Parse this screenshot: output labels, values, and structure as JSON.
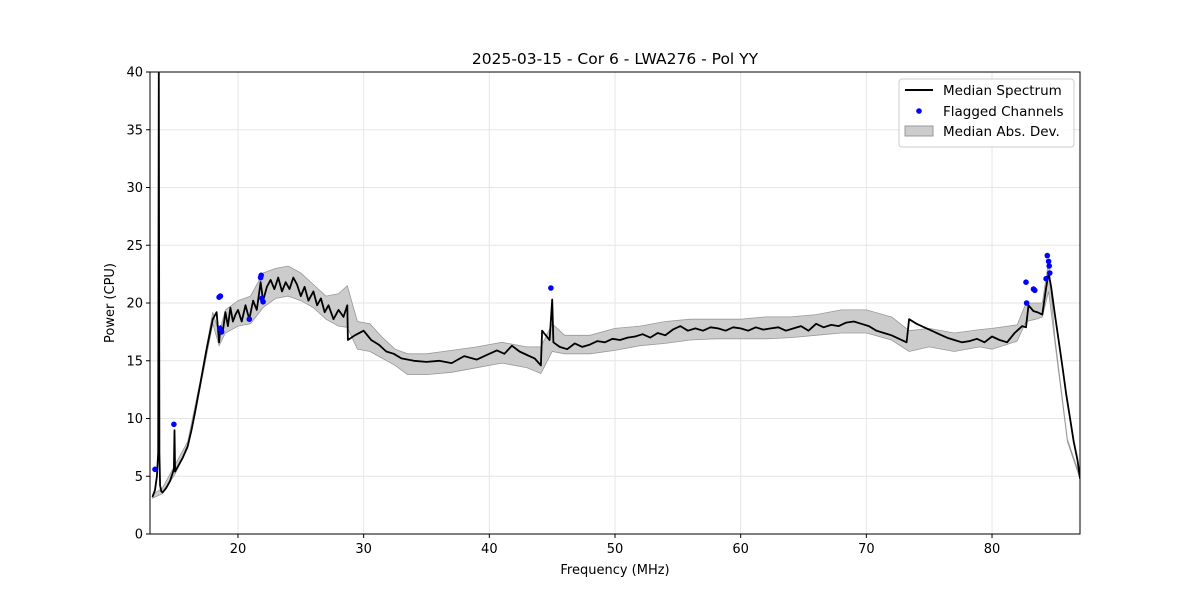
{
  "chart_data": {
    "type": "line",
    "title": "2025-03-15 - Cor 6 - LWA276 - Pol YY",
    "xlabel": "Frequency (MHz)",
    "ylabel": "Power (CPU)",
    "xlim": [
      13.0,
      87.0
    ],
    "ylim": [
      0,
      40
    ],
    "xticks": [
      20,
      30,
      40,
      50,
      60,
      70,
      80
    ],
    "yticks": [
      0,
      5,
      10,
      15,
      20,
      25,
      30,
      35,
      40
    ],
    "grid": true,
    "legend_position": "top-right",
    "legend": [
      "Median Spectrum",
      "Flagged Channels",
      "Median Abs. Dev."
    ],
    "colors": {
      "median": "#000000",
      "flagged": "#0000ff",
      "mad_fill": "#cccccc",
      "mad_edge": "#999999",
      "grid": "#e6e6e6"
    },
    "series": [
      {
        "name": "Median Spectrum",
        "x": [
          13.2,
          13.4,
          13.55,
          13.65,
          13.7,
          13.75,
          13.8,
          13.9,
          14.0,
          14.3,
          14.6,
          14.9,
          14.95,
          15.0,
          15.2,
          15.6,
          16.0,
          16.3,
          16.6,
          17.0,
          17.5,
          18.0,
          18.3,
          18.5,
          18.6,
          18.8,
          19.0,
          19.2,
          19.4,
          19.6,
          19.8,
          20.0,
          20.3,
          20.6,
          20.9,
          21.2,
          21.5,
          21.8,
          22.0,
          22.3,
          22.6,
          22.9,
          23.2,
          23.5,
          23.8,
          24.1,
          24.4,
          24.7,
          25.0,
          25.3,
          25.6,
          26.0,
          26.3,
          26.6,
          26.9,
          27.2,
          27.6,
          28.0,
          28.4,
          28.7,
          28.75,
          29.3,
          30.0,
          30.6,
          31.2,
          31.8,
          32.4,
          33.0,
          34.0,
          35.0,
          36.0,
          37.0,
          38.0,
          39.0,
          40.0,
          40.6,
          41.2,
          41.8,
          42.4,
          43.0,
          43.6,
          44.1,
          44.2,
          44.8,
          45.0,
          45.1,
          45.6,
          46.2,
          46.8,
          47.4,
          48.0,
          48.6,
          49.2,
          49.8,
          50.4,
          51.0,
          51.6,
          52.2,
          52.8,
          53.4,
          54.0,
          54.6,
          55.2,
          55.8,
          56.4,
          57.0,
          57.6,
          58.2,
          58.8,
          59.4,
          60.0,
          60.6,
          61.2,
          61.8,
          62.4,
          63.0,
          63.6,
          64.2,
          64.8,
          65.4,
          66.0,
          66.6,
          67.2,
          67.8,
          68.4,
          69.0,
          69.6,
          70.2,
          70.8,
          71.4,
          72.0,
          72.6,
          73.2,
          73.4,
          74.0,
          74.6,
          75.2,
          75.8,
          76.4,
          77.0,
          77.6,
          78.2,
          78.8,
          79.4,
          80.0,
          80.6,
          81.2,
          81.8,
          82.4,
          82.7,
          82.9,
          83.3,
          83.6,
          84.0,
          84.3,
          84.5,
          84.7,
          85.0,
          85.3,
          85.6,
          85.9,
          86.2,
          86.5,
          86.8,
          87.0
        ],
        "y": [
          3.2,
          3.8,
          5.0,
          7.0,
          40.0,
          7.0,
          4.2,
          3.7,
          3.6,
          4.0,
          4.6,
          5.6,
          9.0,
          5.4,
          5.8,
          6.6,
          7.6,
          9.0,
          10.6,
          13.0,
          16.0,
          18.6,
          19.2,
          16.6,
          18.0,
          17.6,
          19.2,
          18.0,
          19.6,
          18.4,
          19.0,
          19.4,
          18.4,
          19.8,
          18.6,
          20.2,
          19.4,
          21.8,
          20.2,
          21.4,
          22.0,
          21.2,
          22.2,
          21.0,
          21.8,
          21.2,
          22.2,
          21.6,
          20.6,
          21.4,
          20.2,
          21.0,
          19.8,
          20.4,
          19.2,
          19.8,
          18.6,
          19.4,
          18.8,
          19.8,
          16.8,
          17.2,
          17.6,
          16.8,
          16.4,
          15.8,
          15.6,
          15.2,
          15.0,
          14.9,
          15.0,
          14.8,
          15.4,
          15.1,
          15.6,
          15.9,
          15.6,
          16.3,
          15.8,
          15.5,
          15.2,
          14.6,
          17.6,
          16.8,
          20.3,
          16.6,
          16.2,
          16.0,
          16.5,
          16.2,
          16.4,
          16.7,
          16.6,
          16.9,
          16.8,
          17.0,
          17.1,
          17.3,
          17.0,
          17.4,
          17.2,
          17.7,
          18.0,
          17.6,
          17.8,
          17.6,
          17.9,
          17.8,
          17.6,
          17.9,
          17.8,
          17.6,
          17.9,
          17.7,
          17.8,
          17.9,
          17.6,
          17.8,
          18.0,
          17.6,
          18.2,
          17.9,
          18.1,
          18.0,
          18.3,
          18.4,
          18.2,
          18.0,
          17.6,
          17.4,
          17.2,
          16.9,
          16.6,
          18.6,
          18.2,
          17.9,
          17.6,
          17.3,
          17.0,
          16.8,
          16.6,
          16.7,
          16.9,
          16.6,
          17.1,
          16.8,
          16.6,
          17.4,
          18.0,
          17.9,
          19.8,
          19.3,
          19.2,
          19.0,
          21.3,
          22.6,
          21.4,
          19.0,
          16.8,
          14.5,
          12.1,
          10.1,
          8.0,
          6.4,
          4.8
        ]
      },
      {
        "name": "Median Abs. Dev.",
        "type": "area",
        "x": [
          13.2,
          14.0,
          15.0,
          16.0,
          17.0,
          18.0,
          18.5,
          19.0,
          20.0,
          21.0,
          22.0,
          23.0,
          24.0,
          25.0,
          26.0,
          27.0,
          28.0,
          28.7,
          29.5,
          30.5,
          31.5,
          32.5,
          33.5,
          35.0,
          37.0,
          39.0,
          41.0,
          43.0,
          44.1,
          45.0,
          46.0,
          48.0,
          50.0,
          52.0,
          54.0,
          56.0,
          58.0,
          60.0,
          62.0,
          64.0,
          66.0,
          68.0,
          70.0,
          72.0,
          73.4,
          75.0,
          77.0,
          79.0,
          80.0,
          82.0,
          82.7,
          83.5,
          84.0,
          84.5,
          85.0,
          86.0,
          87.0
        ],
        "lower": [
          3.1,
          3.5,
          5.2,
          7.4,
          12.7,
          18.2,
          16.3,
          17.4,
          18.0,
          18.2,
          19.6,
          20.4,
          20.6,
          20.2,
          19.6,
          18.6,
          18.0,
          17.9,
          16.0,
          15.8,
          15.2,
          14.6,
          13.8,
          13.8,
          14.0,
          14.4,
          14.8,
          14.4,
          13.9,
          15.8,
          15.6,
          15.6,
          15.9,
          16.3,
          16.5,
          16.8,
          16.9,
          16.9,
          16.9,
          17.0,
          17.2,
          17.4,
          17.4,
          16.8,
          15.8,
          16.2,
          15.8,
          16.2,
          16.0,
          16.7,
          18.4,
          18.6,
          18.8,
          21.0,
          16.6,
          8.0,
          4.8
        ],
        "upper": [
          3.4,
          4.0,
          6.0,
          8.0,
          13.3,
          19.2,
          17.4,
          19.4,
          20.2,
          20.6,
          22.6,
          23.0,
          23.2,
          22.6,
          21.6,
          20.6,
          20.8,
          21.5,
          18.4,
          18.2,
          17.0,
          16.0,
          15.6,
          15.6,
          15.9,
          16.2,
          16.6,
          16.2,
          16.2,
          18.2,
          17.2,
          17.2,
          17.8,
          18.0,
          18.4,
          18.6,
          18.6,
          18.6,
          18.8,
          18.8,
          19.0,
          19.4,
          19.4,
          18.8,
          17.6,
          17.8,
          17.4,
          17.7,
          17.8,
          18.1,
          20.0,
          20.0,
          20.0,
          23.6,
          17.0,
          8.2,
          5.0
        ]
      },
      {
        "name": "Flagged Channels",
        "type": "scatter",
        "x": [
          13.4,
          14.9,
          18.5,
          18.6,
          18.55,
          18.7,
          20.9,
          21.8,
          21.85,
          21.9,
          22.0,
          44.9,
          82.7,
          82.75,
          83.3,
          83.4,
          84.3,
          84.4,
          84.5,
          84.55,
          84.6
        ],
        "y": [
          5.6,
          9.5,
          20.5,
          20.6,
          17.8,
          17.5,
          18.6,
          22.2,
          22.4,
          20.4,
          20.1,
          21.3,
          21.8,
          20.0,
          21.2,
          21.1,
          22.1,
          24.1,
          23.6,
          23.2,
          22.6
        ]
      }
    ]
  }
}
